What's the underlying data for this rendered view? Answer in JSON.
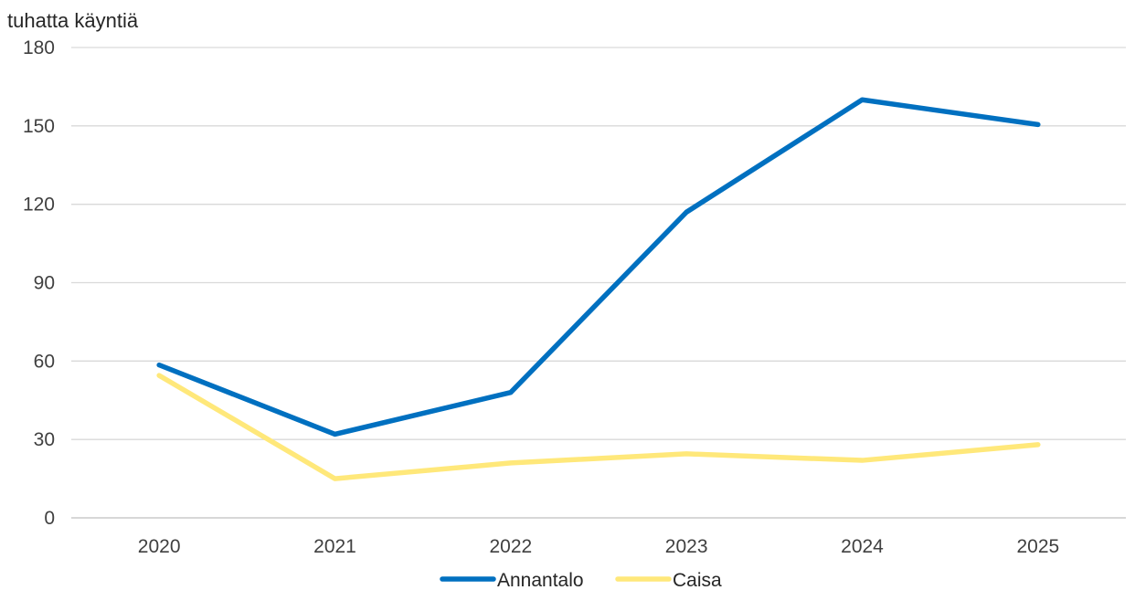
{
  "chart_data": {
    "type": "line",
    "ylabel": "tuhatta käyntiä",
    "xlabel": "",
    "categories": [
      "2020",
      "2021",
      "2022",
      "2023",
      "2024",
      "2025"
    ],
    "ylim": [
      0,
      180
    ],
    "yticks": [
      0,
      30,
      60,
      90,
      120,
      150,
      180
    ],
    "grid": true,
    "legend_position": "bottom",
    "series": [
      {
        "name": "Annantalo",
        "color": "#0070C0",
        "values": [
          58.5,
          32,
          48,
          117,
          160,
          150.5
        ]
      },
      {
        "name": "Caisa",
        "color": "#FFE87A",
        "values": [
          54.5,
          15,
          21,
          24.5,
          22,
          28
        ]
      }
    ]
  }
}
